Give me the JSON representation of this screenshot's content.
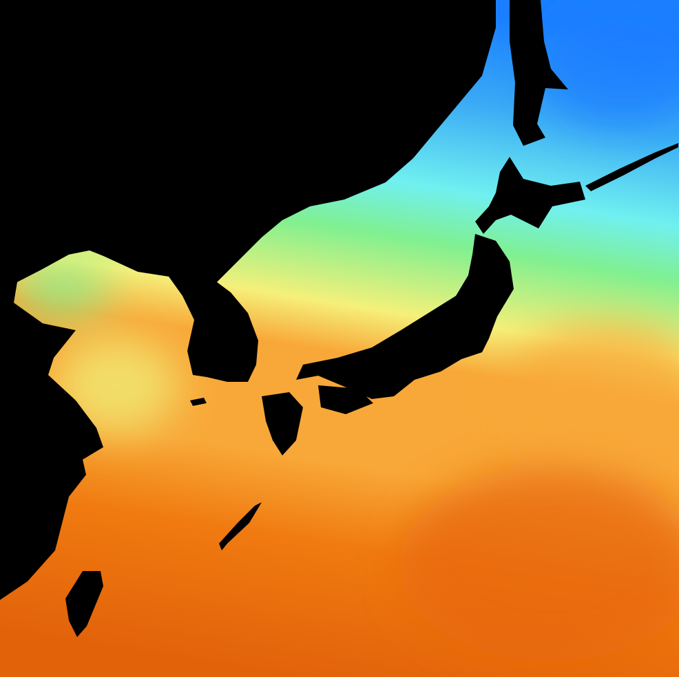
{
  "map": {
    "type": "sea-surface-temperature",
    "land_color": "#000000",
    "border_color": "#000000",
    "palette": {
      "coldest": "#1a7fff",
      "cold": "#3aaaf5",
      "cool": "#70f0f0",
      "mild": "#80f090",
      "warm": "#f5f07a",
      "warmer": "#f8a838",
      "hot": "#f07a10",
      "hottest": "#e2620a"
    }
  }
}
